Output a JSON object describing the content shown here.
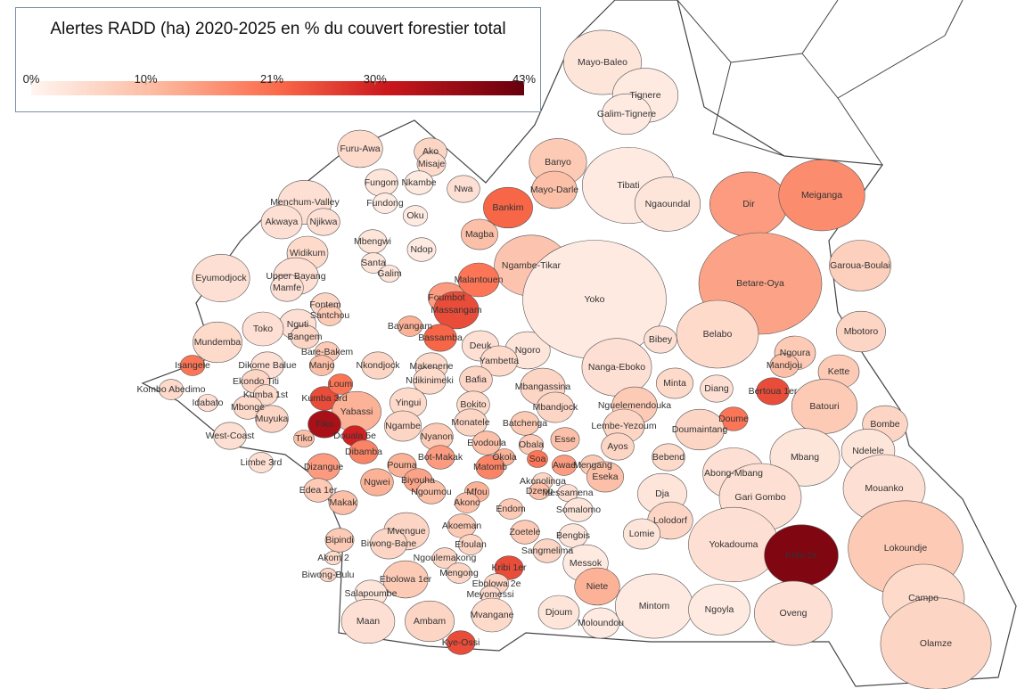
{
  "legend": {
    "title": "Alertes RADD (ha) 2020-2025 en % du couvert forestier total",
    "clim": [
      0,
      43
    ],
    "ticks": [
      {
        "value": 0,
        "label": "0%"
      },
      {
        "value": 10,
        "label": "10%"
      },
      {
        "value": 21,
        "label": "21%"
      },
      {
        "value": 30,
        "label": "30%"
      },
      {
        "value": 43,
        "label": "43%"
      }
    ]
  },
  "regions": [
    {
      "name": "Mayo-Baleo",
      "value": 3
    },
    {
      "name": "Tignere",
      "value": 2
    },
    {
      "name": "Galim-Tignere",
      "value": 2
    },
    {
      "name": "Banyo",
      "value": 8
    },
    {
      "name": "Mayo-Darle",
      "value": 10
    },
    {
      "name": "Tibati",
      "value": 2
    },
    {
      "name": "Ngaoundal",
      "value": 3
    },
    {
      "name": "Dir",
      "value": 15
    },
    {
      "name": "Meiganga",
      "value": 17
    },
    {
      "name": "Bankim",
      "value": 22
    },
    {
      "name": "Furu-Awa",
      "value": 5
    },
    {
      "name": "Ako",
      "value": 6
    },
    {
      "name": "Misaje",
      "value": 5
    },
    {
      "name": "Fungom",
      "value": 3
    },
    {
      "name": "Nkambe",
      "value": 2
    },
    {
      "name": "Nwa",
      "value": 4
    },
    {
      "name": "Menchum-Valley",
      "value": 4
    },
    {
      "name": "Njikwa",
      "value": 4
    },
    {
      "name": "Akwaya",
      "value": 4
    },
    {
      "name": "Magba",
      "value": 10
    },
    {
      "name": "Ngambe-Tikar",
      "value": 9
    },
    {
      "name": "Garoua-Boulai",
      "value": 7
    },
    {
      "name": "Widikum",
      "value": 5
    },
    {
      "name": "Mbengwi",
      "value": 3
    },
    {
      "name": "Ndop",
      "value": 2
    },
    {
      "name": "Fundong",
      "value": 2
    },
    {
      "name": "Oku",
      "value": 2
    },
    {
      "name": "Santa",
      "value": 3
    },
    {
      "name": "Galim",
      "value": 3
    },
    {
      "name": "Foumbot",
      "value": 15
    },
    {
      "name": "Massangam",
      "value": 25
    },
    {
      "name": "Malantouen",
      "value": 20
    },
    {
      "name": "Bayangam",
      "value": 12
    },
    {
      "name": "Bassamba",
      "value": 22
    },
    {
      "name": "Deuk",
      "value": 4
    },
    {
      "name": "Ngoro",
      "value": 3
    },
    {
      "name": "Yoko",
      "value": 2
    },
    {
      "name": "Betare-Oya",
      "value": 14
    },
    {
      "name": "Eyumodjock",
      "value": 4
    },
    {
      "name": "Upper Bayang",
      "value": 4
    },
    {
      "name": "Mamfe",
      "value": 4
    },
    {
      "name": "Fontem",
      "value": 6
    },
    {
      "name": "Santchou",
      "value": 8
    },
    {
      "name": "Nguti",
      "value": 4
    },
    {
      "name": "Toko",
      "value": 4
    },
    {
      "name": "Bangem",
      "value": 6
    },
    {
      "name": "Mundemba",
      "value": 5
    },
    {
      "name": "Bare-Bakem",
      "value": 8
    },
    {
      "name": "Manjo",
      "value": 10
    },
    {
      "name": "Nkondjock",
      "value": 6
    },
    {
      "name": "Makenene",
      "value": 5
    },
    {
      "name": "Yambetta",
      "value": 5
    },
    {
      "name": "Belabo",
      "value": 5
    },
    {
      "name": "Bibey",
      "value": 4
    },
    {
      "name": "Mbotoro",
      "value": 6
    },
    {
      "name": "Ngoura",
      "value": 8
    },
    {
      "name": "Mandjou",
      "value": 10
    },
    {
      "name": "Kette",
      "value": 8
    },
    {
      "name": "Nanga-Eboko",
      "value": 4
    },
    {
      "name": "Mbangassina",
      "value": 6
    },
    {
      "name": "Bertoua 1er",
      "value": 25
    },
    {
      "name": "Batouri",
      "value": 8
    },
    {
      "name": "Diang",
      "value": 4
    },
    {
      "name": "Minta",
      "value": 5
    },
    {
      "name": "Isangele",
      "value": 20
    },
    {
      "name": "Kombo Abedimo",
      "value": 5
    },
    {
      "name": "Dikome Balue",
      "value": 4
    },
    {
      "name": "Ekondo Titi",
      "value": 6
    },
    {
      "name": "Kumba 1st",
      "value": 5
    },
    {
      "name": "Kumba 3rd",
      "value": 25
    },
    {
      "name": "Loum",
      "value": 20
    },
    {
      "name": "Idabato",
      "value": 4
    },
    {
      "name": "Mbonge",
      "value": 5
    },
    {
      "name": "Yabassi",
      "value": 12
    },
    {
      "name": "Ndikinimeki",
      "value": 5
    },
    {
      "name": "Bafia",
      "value": 6
    },
    {
      "name": "Yingui",
      "value": 5
    },
    {
      "name": "Bokito",
      "value": 5
    },
    {
      "name": "Mbandjock",
      "value": 6
    },
    {
      "name": "Nguelemendouka",
      "value": 8
    },
    {
      "name": "Doume",
      "value": 20
    },
    {
      "name": "Bombe",
      "value": 6
    },
    {
      "name": "Muyuka",
      "value": 6
    },
    {
      "name": "Fiko",
      "value": 35
    },
    {
      "name": "Ngambe",
      "value": 6
    },
    {
      "name": "Monatele",
      "value": 6
    },
    {
      "name": "Batchenga",
      "value": 8
    },
    {
      "name": "Lembe-Yezoum",
      "value": 6
    },
    {
      "name": "Doumaintang",
      "value": 6
    },
    {
      "name": "West-Coast",
      "value": 4
    },
    {
      "name": "Douala 5e",
      "value": 30
    },
    {
      "name": "Tiko",
      "value": 10
    },
    {
      "name": "Nyanon",
      "value": 8
    },
    {
      "name": "Evodoula",
      "value": 10
    },
    {
      "name": "Obala",
      "value": 8
    },
    {
      "name": "Esse",
      "value": 10
    },
    {
      "name": "Ayos",
      "value": 6
    },
    {
      "name": "Ndelele",
      "value": 3
    },
    {
      "name": "Dibamba",
      "value": 18
    },
    {
      "name": "Bot-Makak",
      "value": 15
    },
    {
      "name": "Okola",
      "value": 12
    },
    {
      "name": "Soa",
      "value": 20
    },
    {
      "name": "Bebend",
      "value": 5
    },
    {
      "name": "Mbang",
      "value": 3
    },
    {
      "name": "Limbe 3rd",
      "value": 4
    },
    {
      "name": "Dizangue",
      "value": 15
    },
    {
      "name": "Pouma",
      "value": 12
    },
    {
      "name": "Matomb",
      "value": 18
    },
    {
      "name": "Awae",
      "value": 15
    },
    {
      "name": "Mengang",
      "value": 8
    },
    {
      "name": "Abong-Mbang",
      "value": 4
    },
    {
      "name": "Ngwei",
      "value": 12
    },
    {
      "name": "Biyouha",
      "value": 14
    },
    {
      "name": "Akonolinga",
      "value": 6
    },
    {
      "name": "Eseka",
      "value": 10
    },
    {
      "name": "Ngoumou",
      "value": 10
    },
    {
      "name": "Mfou",
      "value": 12
    },
    {
      "name": "Dzeng",
      "value": 10
    },
    {
      "name": "Messamena",
      "value": 4
    },
    {
      "name": "Dja",
      "value": 3
    },
    {
      "name": "Gari Gombo",
      "value": 4
    },
    {
      "name": "Mouanko",
      "value": 4
    },
    {
      "name": "Edea 1er",
      "value": 8
    },
    {
      "name": "Makak",
      "value": 10
    },
    {
      "name": "Akono",
      "value": 10
    },
    {
      "name": "Endom",
      "value": 8
    },
    {
      "name": "Somalomo",
      "value": 3
    },
    {
      "name": "Lolodorf",
      "value": 6
    },
    {
      "name": "Mvengue",
      "value": 6
    },
    {
      "name": "Akoeman",
      "value": 8
    },
    {
      "name": "Zoetele",
      "value": 8
    },
    {
      "name": "Bengbis",
      "value": 3
    },
    {
      "name": "Lomie",
      "value": 3
    },
    {
      "name": "Yokadouma",
      "value": 4
    },
    {
      "name": "Lokoundje",
      "value": 8
    },
    {
      "name": "Bipindi",
      "value": 8
    },
    {
      "name": "Biwong-Bane",
      "value": 6
    },
    {
      "name": "Efoulan",
      "value": 6
    },
    {
      "name": "Ngoulemakong",
      "value": 6
    },
    {
      "name": "Sangmelima",
      "value": 6
    },
    {
      "name": "Messok",
      "value": 2
    },
    {
      "name": "Kribi 2e",
      "value": 40
    },
    {
      "name": "Akom 2",
      "value": 5
    },
    {
      "name": "Ebolowa 1er",
      "value": 8
    },
    {
      "name": "Mengong",
      "value": 6
    },
    {
      "name": "Kribi 1er",
      "value": 25
    },
    {
      "name": "Biwong-Bulu",
      "value": 6
    },
    {
      "name": "Ebolowa 2e",
      "value": 6
    },
    {
      "name": "Meyomessi",
      "value": 5
    },
    {
      "name": "Niete",
      "value": 12
    },
    {
      "name": "Salapoumbe",
      "value": 3
    },
    {
      "name": "Campo",
      "value": 5
    },
    {
      "name": "Maan",
      "value": 4
    },
    {
      "name": "Ambam",
      "value": 6
    },
    {
      "name": "Mvangane",
      "value": 5
    },
    {
      "name": "Djoum",
      "value": 3
    },
    {
      "name": "Mintom",
      "value": 2
    },
    {
      "name": "Ngoyla",
      "value": 2
    },
    {
      "name": "Oveng",
      "value": 4
    },
    {
      "name": "Moloundou",
      "value": 2
    },
    {
      "name": "Olamze",
      "value": 6
    },
    {
      "name": "Kye-Ossi",
      "value": 25
    }
  ]
}
